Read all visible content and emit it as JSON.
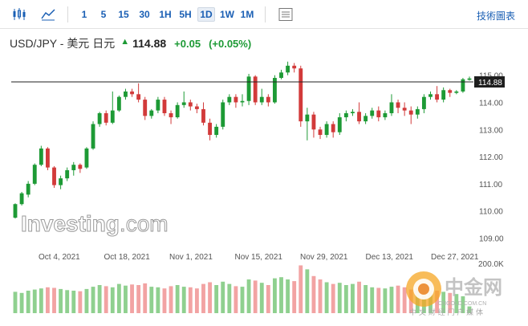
{
  "toolbar": {
    "timeframes": [
      "1",
      "5",
      "15",
      "30",
      "1H",
      "5H",
      "1D",
      "1W",
      "1M"
    ],
    "active_timeframe": "1D",
    "right_link": "技術圖表"
  },
  "header": {
    "symbol": "USD/JPY - 美元 日元",
    "price": "114.88",
    "change": "+0.05",
    "change_pct": "(+0.05%)"
  },
  "logo": {
    "text_main": "Investing",
    "text_suffix": ".com"
  },
  "watermark": {
    "title": "中金网",
    "subtitle": "中 文 财 经 门 户 媒 体",
    "url": "CNGOLD.COM.CN"
  },
  "colors": {
    "up": "#1d9a35",
    "down": "#d23a3a",
    "volume_up": "#8fd08f",
    "volume_down": "#f2a3a3",
    "accent": "#1a5fb4"
  },
  "chart_data": {
    "type": "candlestick",
    "y_ticks": [
      "115.00",
      "114.00",
      "113.00",
      "112.00",
      "111.00",
      "110.00",
      "109.00"
    ],
    "ylim": [
      108.6,
      115.7
    ],
    "current_price_label": "114.88",
    "x_ticks": [
      "Oct 4, 2021",
      "Oct 18, 2021",
      "Nov 1, 2021",
      "Nov 15, 2021",
      "Nov 29, 2021",
      "Dec 13, 2021",
      "Dec 27, 2021"
    ],
    "volume_axis_label": "200.0K",
    "candles": [
      [
        109.75,
        110.25,
        109.72,
        110.28
      ],
      [
        110.25,
        110.65,
        110.2,
        110.7
      ],
      [
        110.6,
        111.0,
        110.5,
        111.1
      ],
      [
        111.0,
        111.7,
        110.95,
        111.75
      ],
      [
        111.7,
        112.3,
        111.65,
        112.4
      ],
      [
        112.3,
        111.6,
        111.5,
        112.35
      ],
      [
        111.6,
        110.95,
        110.85,
        111.65
      ],
      [
        110.95,
        111.2,
        110.8,
        111.3
      ],
      [
        111.2,
        111.5,
        111.1,
        111.6
      ],
      [
        111.5,
        111.7,
        111.3,
        111.8
      ],
      [
        111.7,
        111.55,
        111.4,
        111.75
      ],
      [
        111.6,
        112.3,
        111.55,
        112.35
      ],
      [
        112.3,
        113.2,
        112.25,
        113.3
      ],
      [
        113.2,
        113.6,
        113.1,
        113.65
      ],
      [
        113.6,
        113.25,
        113.15,
        113.7
      ],
      [
        113.25,
        113.7,
        113.2,
        114.4
      ],
      [
        113.7,
        114.2,
        113.65,
        114.25
      ],
      [
        114.2,
        114.4,
        114.1,
        114.5
      ],
      [
        114.4,
        114.3,
        114.2,
        114.5
      ],
      [
        114.3,
        114.1,
        114.0,
        114.7
      ],
      [
        114.1,
        113.5,
        113.35,
        114.2
      ],
      [
        113.5,
        113.7,
        113.4,
        113.75
      ],
      [
        113.7,
        114.1,
        113.6,
        114.2
      ],
      [
        114.1,
        113.6,
        113.5,
        114.2
      ],
      [
        113.6,
        113.45,
        113.2,
        113.7
      ],
      [
        113.45,
        113.9,
        113.4,
        114.0
      ],
      [
        113.9,
        114.0,
        113.8,
        114.4
      ],
      [
        114.0,
        113.85,
        113.7,
        114.1
      ],
      [
        113.85,
        113.75,
        113.6,
        113.95
      ],
      [
        113.75,
        113.25,
        113.15,
        114.0
      ],
      [
        113.25,
        112.8,
        112.6,
        113.4
      ],
      [
        112.8,
        113.1,
        112.7,
        113.2
      ],
      [
        113.1,
        114.0,
        113.0,
        114.1
      ],
      [
        114.0,
        114.2,
        113.9,
        114.3
      ],
      [
        114.2,
        114.0,
        113.8,
        114.3
      ],
      [
        114.0,
        114.05,
        113.85,
        114.3
      ],
      [
        114.05,
        114.95,
        113.9,
        115.05
      ],
      [
        114.95,
        114.0,
        113.9,
        115.0
      ],
      [
        114.0,
        114.2,
        113.9,
        114.5
      ],
      [
        114.2,
        114.0,
        113.85,
        114.3
      ],
      [
        114.0,
        114.9,
        113.95,
        115.0
      ],
      [
        114.9,
        115.1,
        114.85,
        115.2
      ],
      [
        115.1,
        115.35,
        115.0,
        115.5
      ],
      [
        115.35,
        115.25,
        115.1,
        115.45
      ],
      [
        115.25,
        113.3,
        113.1,
        115.35
      ],
      [
        113.3,
        113.55,
        112.6,
        113.8
      ],
      [
        113.55,
        113.0,
        112.7,
        113.65
      ],
      [
        113.0,
        112.8,
        112.65,
        113.1
      ],
      [
        112.8,
        113.2,
        112.7,
        113.3
      ],
      [
        113.2,
        112.9,
        112.7,
        113.3
      ],
      [
        112.9,
        113.45,
        112.8,
        113.6
      ],
      [
        113.45,
        113.6,
        113.3,
        113.7
      ],
      [
        113.6,
        113.65,
        113.5,
        113.75
      ],
      [
        113.65,
        113.3,
        113.2,
        114.0
      ],
      [
        113.3,
        113.5,
        113.2,
        113.6
      ],
      [
        113.5,
        113.7,
        113.4,
        113.8
      ],
      [
        113.7,
        113.45,
        113.3,
        113.85
      ],
      [
        113.45,
        113.6,
        113.35,
        113.7
      ],
      [
        113.6,
        114.0,
        113.5,
        114.3
      ],
      [
        114.0,
        113.8,
        113.6,
        114.1
      ],
      [
        113.8,
        113.7,
        113.5,
        114.0
      ],
      [
        113.7,
        113.55,
        113.2,
        113.85
      ],
      [
        113.55,
        113.75,
        113.4,
        113.85
      ],
      [
        113.75,
        114.2,
        113.6,
        114.3
      ],
      [
        114.2,
        114.3,
        114.1,
        114.4
      ],
      [
        114.3,
        114.1,
        114.0,
        114.6
      ],
      [
        114.1,
        114.45,
        114.0,
        114.55
      ],
      [
        114.45,
        114.35,
        114.2,
        114.5
      ],
      [
        114.35,
        114.4,
        114.3,
        114.45
      ],
      [
        114.4,
        114.85,
        114.35,
        114.9
      ],
      [
        114.83,
        114.88,
        114.8,
        114.95
      ]
    ],
    "volume": [
      0.38,
      0.36,
      0.4,
      0.42,
      0.44,
      0.46,
      0.45,
      0.43,
      0.41,
      0.4,
      0.39,
      0.43,
      0.47,
      0.5,
      0.48,
      0.46,
      0.52,
      0.49,
      0.51,
      0.5,
      0.53,
      0.47,
      0.46,
      0.44,
      0.48,
      0.5,
      0.47,
      0.46,
      0.44,
      0.52,
      0.55,
      0.5,
      0.56,
      0.52,
      0.48,
      0.47,
      0.6,
      0.58,
      0.54,
      0.5,
      0.62,
      0.64,
      0.6,
      0.57,
      0.85,
      0.78,
      0.66,
      0.6,
      0.55,
      0.52,
      0.54,
      0.5,
      0.52,
      0.56,
      0.5,
      0.46,
      0.45,
      0.44,
      0.47,
      0.49,
      0.46,
      0.42,
      0.45,
      0.44,
      0.41,
      0.4,
      0.38,
      0.36,
      0.34,
      0.3,
      0.12
    ]
  }
}
